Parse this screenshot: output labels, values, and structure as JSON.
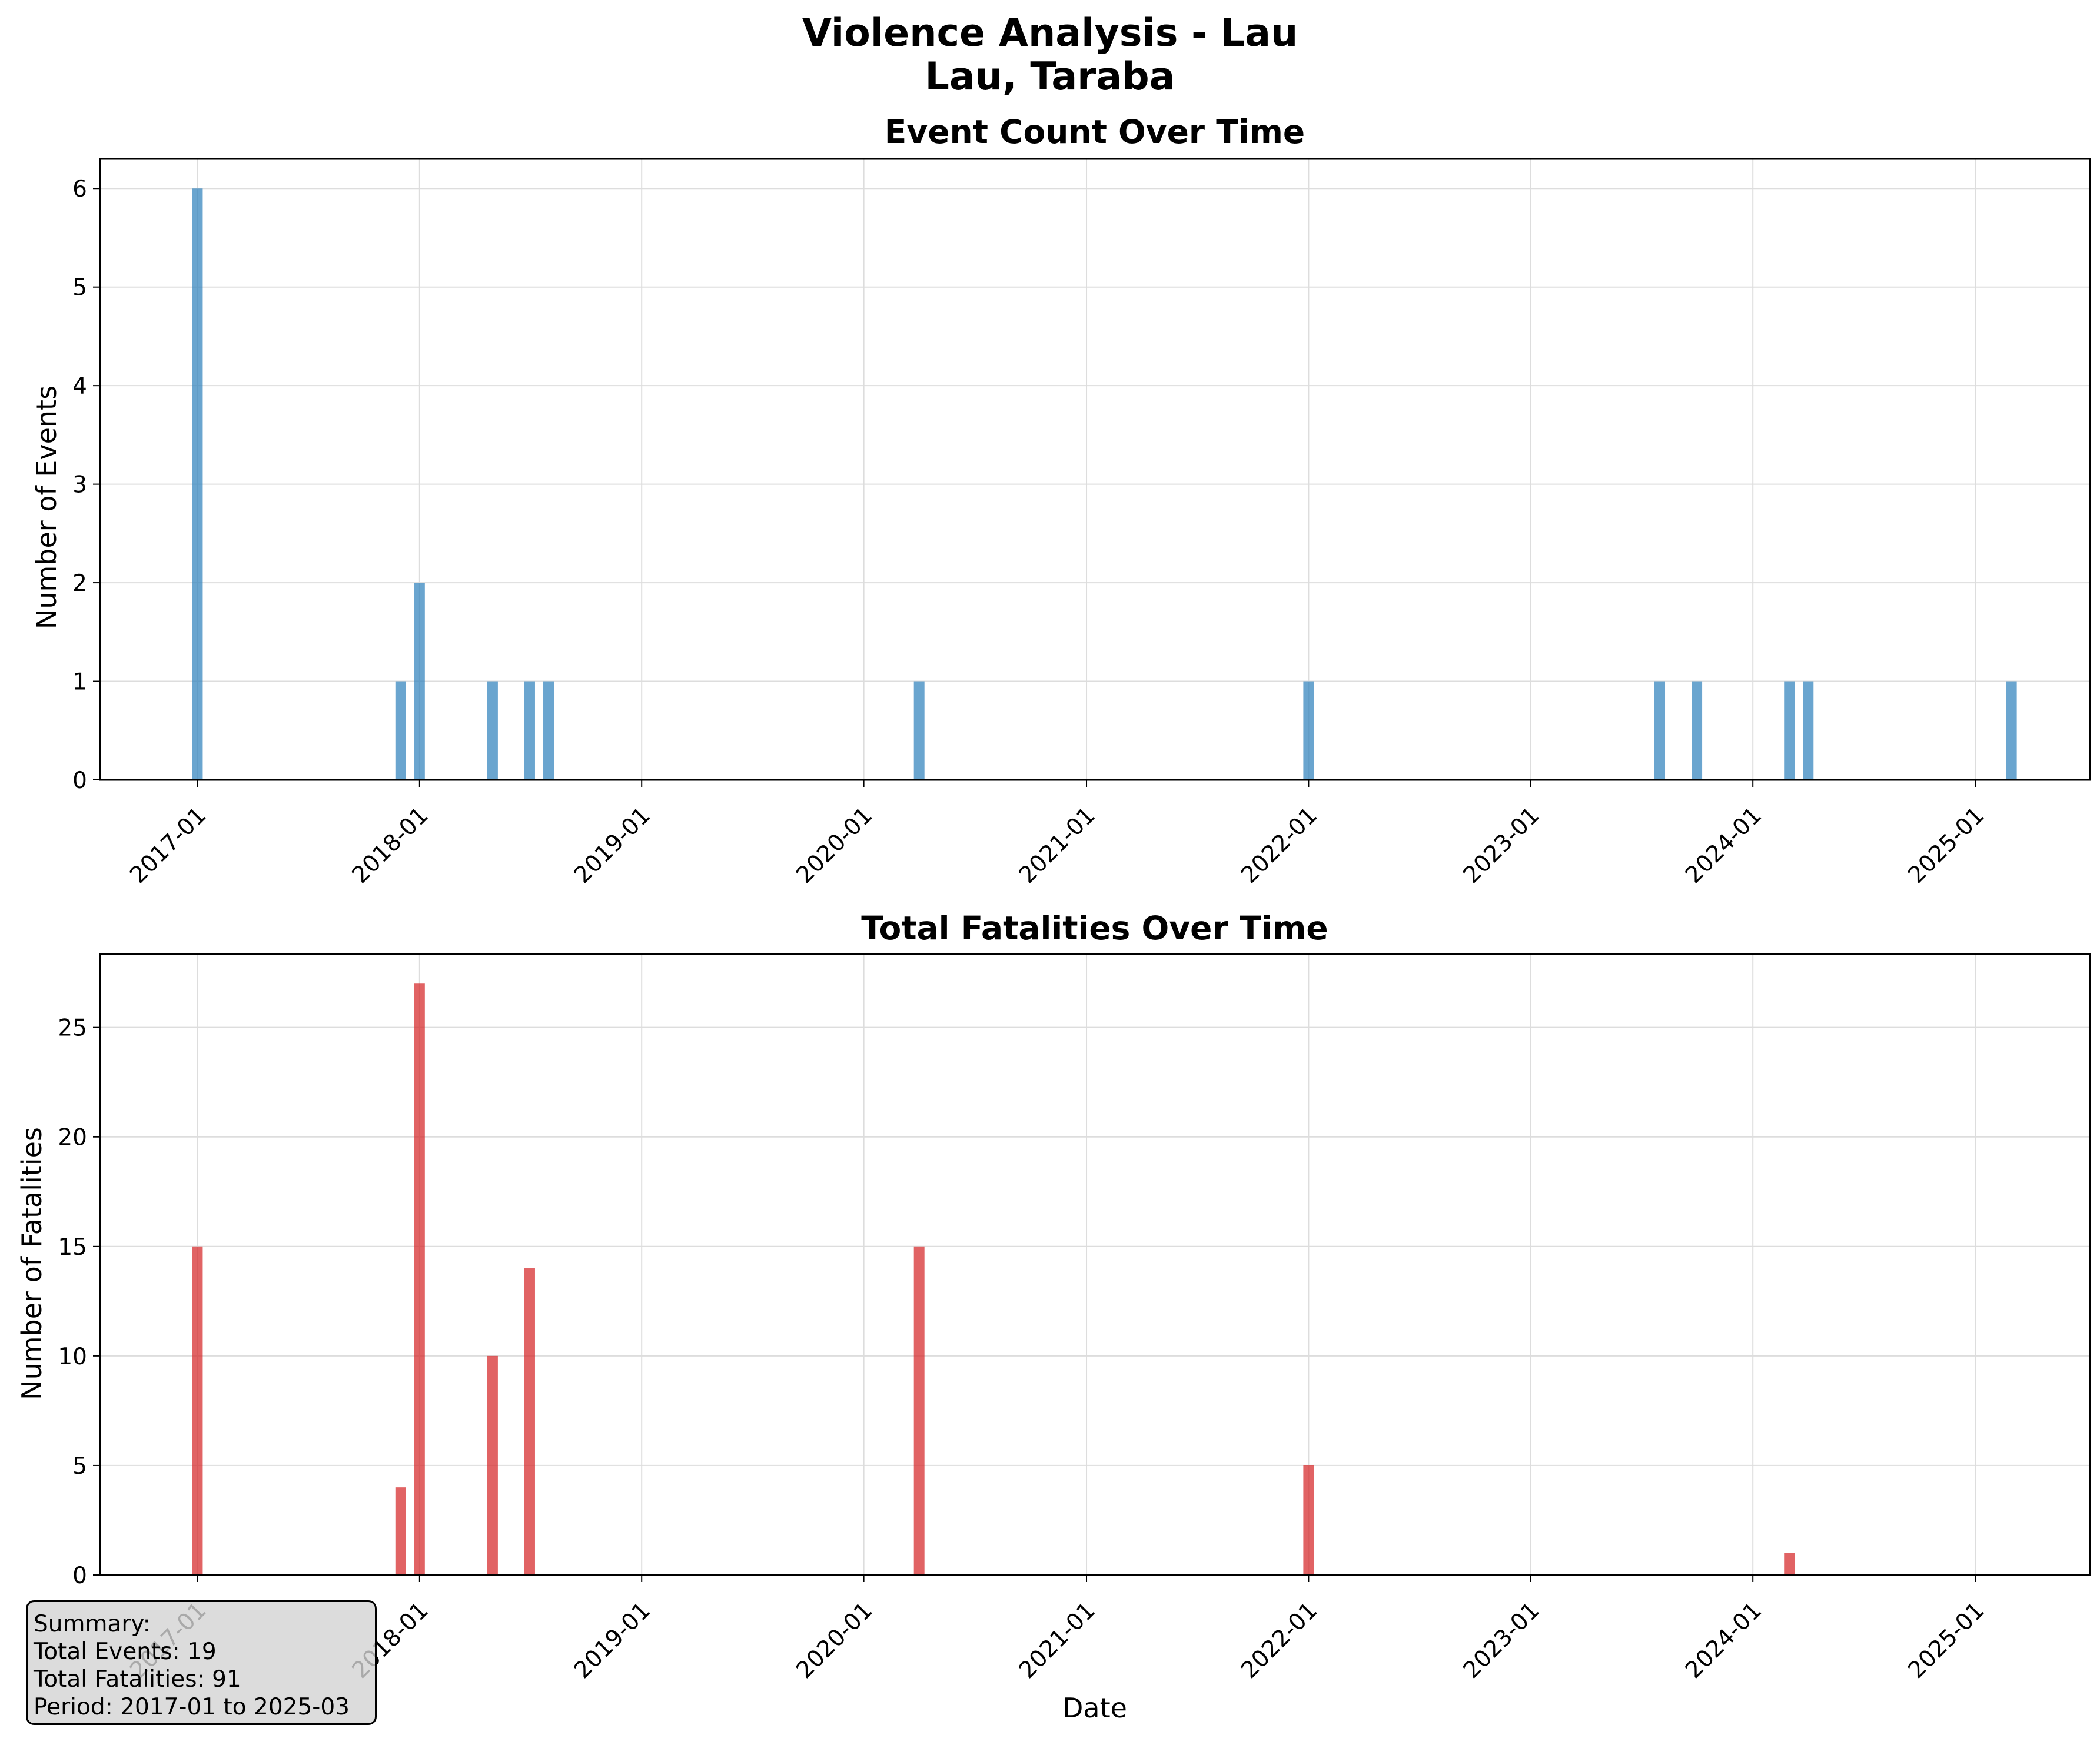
{
  "figure": {
    "title_line1": "Violence Analysis - Lau",
    "title_line2": "Lau, Taraba"
  },
  "colors": {
    "events_bar": "#3182bd",
    "fatalities_bar": "#d62728",
    "grid": "#dddddd"
  },
  "chart_data": [
    {
      "type": "bar",
      "title": "Event Count Over Time",
      "xlabel": "",
      "ylabel": "Number of Events",
      "x_ticks": [
        "2017-01",
        "2018-01",
        "2019-01",
        "2020-01",
        "2021-01",
        "2022-01",
        "2023-01",
        "2024-01",
        "2025-01"
      ],
      "y_ticks": [
        0,
        1,
        2,
        3,
        4,
        5,
        6
      ],
      "ylim": [
        0,
        6.3
      ],
      "xlim": [
        "2016-07-25",
        "2025-07-08"
      ],
      "grid": true,
      "bar_color": "#3182bd",
      "x": [
        "2017-01",
        "2017-12",
        "2018-01",
        "2018-05",
        "2018-07",
        "2018-08",
        "2020-04",
        "2022-01",
        "2023-08",
        "2023-10",
        "2024-03",
        "2024-04",
        "2025-03"
      ],
      "values": [
        6,
        1,
        2,
        1,
        1,
        1,
        1,
        1,
        1,
        1,
        1,
        1,
        1
      ]
    },
    {
      "type": "bar",
      "title": "Total Fatalities Over Time",
      "xlabel": "Date",
      "ylabel": "Number of Fatalities",
      "x_ticks": [
        "2017-01",
        "2018-01",
        "2019-01",
        "2020-01",
        "2021-01",
        "2022-01",
        "2023-01",
        "2024-01",
        "2025-01"
      ],
      "y_ticks": [
        0,
        5,
        10,
        15,
        20,
        25
      ],
      "ylim": [
        0,
        28.35
      ],
      "xlim": [
        "2016-07-25",
        "2025-07-08"
      ],
      "grid": true,
      "bar_color": "#d62728",
      "x": [
        "2017-01",
        "2017-12",
        "2018-01",
        "2018-05",
        "2018-07",
        "2018-08",
        "2020-04",
        "2022-01",
        "2023-08",
        "2023-10",
        "2024-03",
        "2024-04",
        "2025-03"
      ],
      "values": [
        15,
        4,
        27,
        10,
        14,
        0,
        15,
        5,
        0,
        0,
        1,
        0,
        0
      ]
    }
  ],
  "summary": {
    "heading": "Summary:",
    "total_events": "Total Events: 19",
    "total_fatalities": "Total Fatalities: 91",
    "period": "Period: 2017-01 to 2025-03"
  }
}
